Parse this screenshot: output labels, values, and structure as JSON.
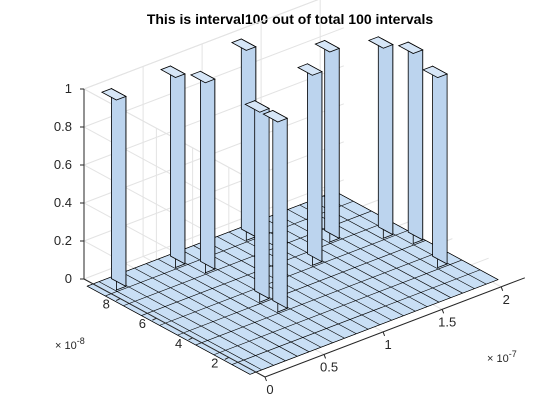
{
  "chart_data": {
    "type": "bar3",
    "title": "This is interval100 out of total 100 intervals",
    "x_ticks": [
      "0",
      "0.5",
      "1",
      "1.5",
      "2"
    ],
    "x_tick_values": [
      0,
      0.5,
      1,
      1.5,
      2
    ],
    "x_exponent_base": "× 10",
    "x_exponent_power": "-7",
    "y_ticks": [
      "2",
      "4",
      "6",
      "8"
    ],
    "y_tick_values": [
      2,
      4,
      6,
      8
    ],
    "y_exponent_base": "× 10",
    "y_exponent_power": "-8",
    "z_ticks": [
      "0",
      "0.2",
      "0.4",
      "0.6",
      "0.8",
      "1"
    ],
    "z_tick_values": [
      0,
      0.2,
      0.4,
      0.6,
      0.8,
      1
    ],
    "x_unit_scale": 1e-07,
    "y_unit_scale": 1e-08,
    "grid_x": [
      0,
      0.1,
      0.2,
      0.3,
      0.4,
      0.5,
      0.6,
      0.7,
      0.8,
      0.9,
      1.0,
      1.1,
      1.2,
      1.3,
      1.4,
      1.5,
      1.6,
      1.7,
      1.8,
      1.9,
      2.0
    ],
    "grid_y": [
      1,
      2,
      3,
      4,
      5,
      6,
      7,
      8,
      9
    ],
    "xlim": [
      0,
      2.2
    ],
    "ylim": [
      0,
      10
    ],
    "zlim": [
      0,
      1
    ],
    "grid": true,
    "bar_color": "#c9dff5",
    "edge_color": "#000000",
    "bars": [
      {
        "x": 0.1,
        "y": 9,
        "z": 1
      },
      {
        "x": 0.6,
        "y": 9,
        "z": 1
      },
      {
        "x": 0.7,
        "y": 8,
        "z": 1
      },
      {
        "x": 0.7,
        "y": 5,
        "z": 1
      },
      {
        "x": 0.7,
        "y": 4,
        "z": 1
      },
      {
        "x": 1.2,
        "y": 9,
        "z": 1
      },
      {
        "x": 1.3,
        "y": 6,
        "z": 1
      },
      {
        "x": 1.6,
        "y": 7,
        "z": 1
      },
      {
        "x": 1.9,
        "y": 6,
        "z": 1
      },
      {
        "x": 2.0,
        "y": 5,
        "z": 1
      },
      {
        "x": 1.9,
        "y": 3,
        "z": 1
      }
    ]
  }
}
